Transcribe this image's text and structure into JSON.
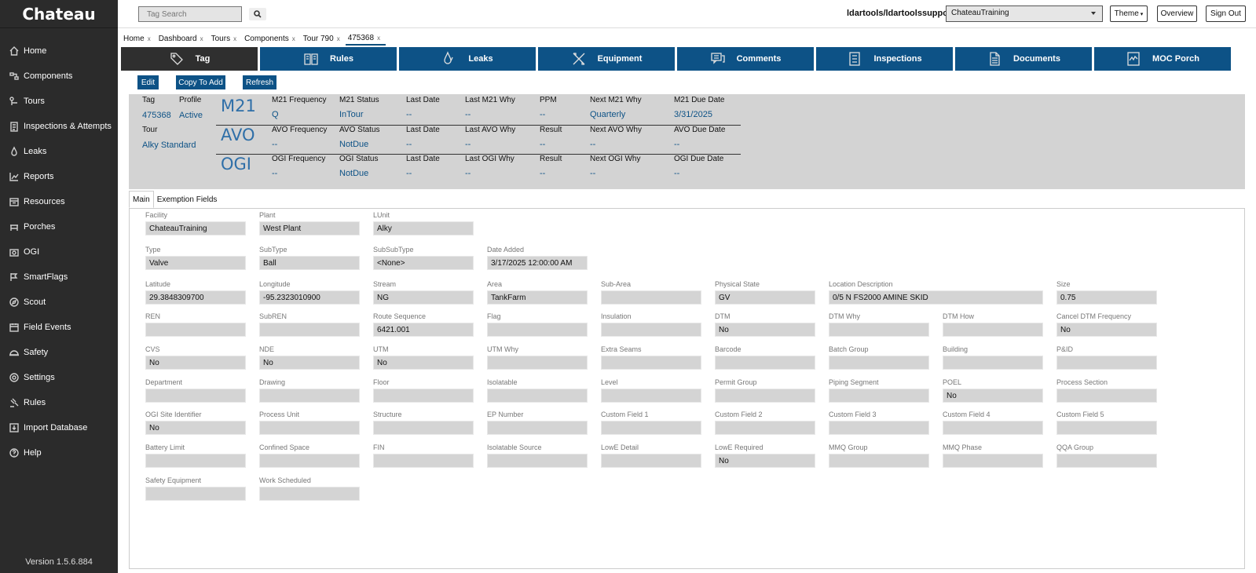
{
  "app": {
    "title": "Chateau",
    "version": "Version 1.5.6.884"
  },
  "sidebar": {
    "items": [
      {
        "label": "Home",
        "icon": "home-icon"
      },
      {
        "label": "Components",
        "icon": "components-icon"
      },
      {
        "label": "Tours",
        "icon": "tours-icon"
      },
      {
        "label": "Inspections & Attempts",
        "icon": "clipboard-icon"
      },
      {
        "label": "Leaks",
        "icon": "droplet-icon"
      },
      {
        "label": "Reports",
        "icon": "chart-icon"
      },
      {
        "label": "Resources",
        "icon": "resources-icon"
      },
      {
        "label": "Porches",
        "icon": "porch-icon"
      },
      {
        "label": "OGI",
        "icon": "camera-icon"
      },
      {
        "label": "SmartFlags",
        "icon": "flag-icon"
      },
      {
        "label": "Scout",
        "icon": "scout-icon"
      },
      {
        "label": "Field Events",
        "icon": "calendar-icon"
      },
      {
        "label": "Safety",
        "icon": "helmet-icon"
      },
      {
        "label": "Settings",
        "icon": "gear-icon"
      },
      {
        "label": "Rules",
        "icon": "gavel-icon"
      },
      {
        "label": "Import Database",
        "icon": "import-icon"
      },
      {
        "label": "Help",
        "icon": "help-icon"
      }
    ]
  },
  "header": {
    "search_placeholder": "Tag Search",
    "user": "ldartools/ldartoolssupport",
    "facility": "ChateauTraining",
    "theme_label": "Theme",
    "overview_label": "Overview",
    "signout_label": "Sign Out"
  },
  "breadcrumbs": [
    "Home",
    "Dashboard",
    "Tours",
    "Components",
    "Tour 790",
    "475368"
  ],
  "tabs": [
    "Tag",
    "Rules",
    "Leaks",
    "Equipment",
    "Comments",
    "Inspections",
    "Documents",
    "MOC Porch"
  ],
  "actions": {
    "edit": "Edit",
    "copy": "Copy To Add",
    "refresh": "Refresh"
  },
  "summary": {
    "tag_label": "Tag",
    "tag": "475368",
    "profile_label": "Profile",
    "profile": "Active",
    "tour_label": "Tour",
    "tour": "Alky Standard",
    "m21": {
      "title": "M21",
      "freq_label": "M21 Frequency",
      "freq": "Q",
      "status_label": "M21 Status",
      "status": "InTour",
      "last_label": "Last Date",
      "last": "--",
      "why_label": "Last M21 Why",
      "why": "--",
      "ppm_label": "PPM",
      "ppm": "--",
      "next_label": "Next M21 Why",
      "next": "Quarterly",
      "due_label": "M21 Due Date",
      "due": "3/31/2025"
    },
    "avo": {
      "title": "AVO",
      "freq_label": "AVO Frequency",
      "freq": "--",
      "status_label": "AVO Status",
      "status": "NotDue",
      "last_label": "Last Date",
      "last": "--",
      "why_label": "Last AVO Why",
      "why": "--",
      "res_label": "Result",
      "res": "--",
      "next_label": "Next AVO Why",
      "next": "--",
      "due_label": "AVO Due Date",
      "due": "--"
    },
    "ogi": {
      "title": "OGI",
      "freq_label": "OGI Frequency",
      "freq": "--",
      "status_label": "OGI Status",
      "status": "NotDue",
      "last_label": "Last Date",
      "last": "--",
      "why_label": "Last OGI Why",
      "why": "--",
      "res_label": "Result",
      "res": "--",
      "next_label": "Next OGI Why",
      "next": "--",
      "due_label": "OGI Due Date",
      "due": "--"
    }
  },
  "subtabs": [
    "Main",
    "Exemption Fields"
  ],
  "fields": [
    [
      {
        "label": "Facility",
        "value": "ChateauTraining"
      },
      {
        "label": "Plant",
        "value": "West Plant"
      },
      {
        "label": "LUnit",
        "value": "Alky"
      }
    ],
    [
      {
        "label": "Type",
        "value": "Valve"
      },
      {
        "label": "SubType",
        "value": "Ball"
      },
      {
        "label": "SubSubType",
        "value": "<None>"
      },
      {
        "label": "Date Added",
        "value": "3/17/2025 12:00:00 AM"
      }
    ],
    [
      {
        "label": "Latitude",
        "value": "29.3848309700"
      },
      {
        "label": "Longitude",
        "value": "-95.2323010900"
      },
      {
        "label": "Stream",
        "value": "NG"
      },
      {
        "label": "Area",
        "value": "TankFarm"
      },
      {
        "label": "Sub-Area",
        "value": ""
      },
      {
        "label": "Physical State",
        "value": "GV"
      },
      {
        "label": "Location Description",
        "value": "0/5 N FS2000 AMINE SKID",
        "wide": true
      },
      {
        "label": "Size",
        "value": "0.75"
      }
    ],
    [
      {
        "label": "REN",
        "value": ""
      },
      {
        "label": "SubREN",
        "value": ""
      },
      {
        "label": "Route Sequence",
        "value": "6421.001"
      },
      {
        "label": "Flag",
        "value": ""
      },
      {
        "label": "Insulation",
        "value": ""
      },
      {
        "label": "DTM",
        "value": "No"
      },
      {
        "label": "DTM Why",
        "value": ""
      },
      {
        "label": "DTM How",
        "value": ""
      },
      {
        "label": "Cancel DTM Frequency",
        "value": "No"
      }
    ],
    [
      {
        "label": "CVS",
        "value": "No"
      },
      {
        "label": "NDE",
        "value": "No"
      },
      {
        "label": "UTM",
        "value": "No"
      },
      {
        "label": "UTM Why",
        "value": ""
      },
      {
        "label": "Extra Seams",
        "value": ""
      },
      {
        "label": "Barcode",
        "value": ""
      },
      {
        "label": "Batch Group",
        "value": ""
      },
      {
        "label": "Building",
        "value": ""
      },
      {
        "label": "P&ID",
        "value": ""
      }
    ],
    [
      {
        "label": "Department",
        "value": ""
      },
      {
        "label": "Drawing",
        "value": ""
      },
      {
        "label": "Floor",
        "value": ""
      },
      {
        "label": "Isolatable",
        "value": ""
      },
      {
        "label": "Level",
        "value": ""
      },
      {
        "label": "Permit Group",
        "value": ""
      },
      {
        "label": "Piping Segment",
        "value": ""
      },
      {
        "label": "POEL",
        "value": "No"
      },
      {
        "label": "Process Section",
        "value": ""
      }
    ],
    [
      {
        "label": "OGI Site Identifier",
        "value": "No"
      },
      {
        "label": "Process Unit",
        "value": ""
      },
      {
        "label": "Structure",
        "value": ""
      },
      {
        "label": "EP Number",
        "value": ""
      },
      {
        "label": "Custom Field 1",
        "value": ""
      },
      {
        "label": "Custom Field 2",
        "value": ""
      },
      {
        "label": "Custom Field 3",
        "value": ""
      },
      {
        "label": "Custom Field 4",
        "value": ""
      },
      {
        "label": "Custom Field 5",
        "value": ""
      }
    ],
    [
      {
        "label": "Battery Limit",
        "value": ""
      },
      {
        "label": "Confined Space",
        "value": ""
      },
      {
        "label": "FIN",
        "value": ""
      },
      {
        "label": "Isolatable Source",
        "value": ""
      },
      {
        "label": "LowE Detail",
        "value": ""
      },
      {
        "label": "LowE Required",
        "value": "No"
      },
      {
        "label": "MMQ Group",
        "value": ""
      },
      {
        "label": "MMQ Phase",
        "value": ""
      },
      {
        "label": "QQA Group",
        "value": ""
      }
    ],
    [
      {
        "label": "Safety Equipment",
        "value": ""
      },
      {
        "label": "Work Scheduled",
        "value": ""
      }
    ]
  ]
}
